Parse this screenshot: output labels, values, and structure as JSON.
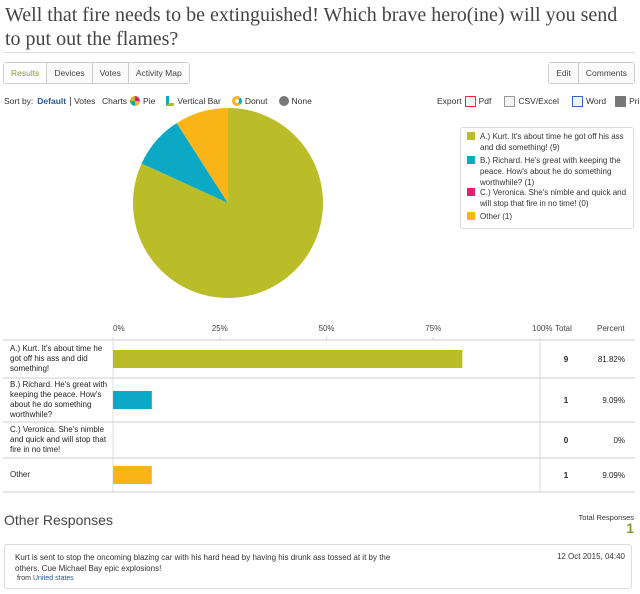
{
  "title": "Well that fire needs to be extinguished! Which brave hero(ine) will you send to put out the flames?",
  "tabs": [
    "Results",
    "Devices",
    "Votes",
    "Activity Map"
  ],
  "actions": [
    "Edit",
    "Comments"
  ],
  "sort": {
    "label": "Sort by:",
    "options": [
      "Default",
      "Votes"
    ]
  },
  "charts": {
    "label": "Charts",
    "options": [
      "Pie",
      "Vertical Bar",
      "Donut",
      "None"
    ]
  },
  "export": {
    "label": "Export",
    "options": [
      "Pdf",
      "CSV/Excel",
      "Word",
      "Print"
    ]
  },
  "axis": {
    "xlim": [
      0,
      100
    ],
    "ticks": [
      {
        "value": 0,
        "label": "0%"
      },
      {
        "value": 25,
        "label": "25%"
      },
      {
        "value": 50,
        "label": "50%"
      },
      {
        "value": 75,
        "label": "75%"
      },
      {
        "value": 100,
        "label": "100%"
      }
    ]
  },
  "headers": [
    "Total",
    "Percent"
  ],
  "options": [
    {
      "label": "A.) Kurt. It's about time he got off his ass and did something!",
      "legend": "A.) Kurt. It's about time he got off his ass and did something! (9)",
      "total": 9,
      "percent": 81.82,
      "percent_label": "81.82%",
      "color": "#bbbd28"
    },
    {
      "label": "B.) Richard. He's great with keeping the peace. How's about he do something worthwhile?",
      "legend": "B.) Richard. He's great with keeping the peace. How's about he do something worthwhile? (1)",
      "total": 1,
      "percent": 9.09,
      "percent_label": "9.09%",
      "color": "#0ba9c5"
    },
    {
      "label": "C.) Veronica. She's nimble and quick and will stop that fire in no time!",
      "legend": "C.) Veronica. She's nimble and quick and will stop that fire in no time! (0)",
      "total": 0,
      "percent": 0,
      "percent_label": "0%",
      "color": "#e2206e"
    },
    {
      "label": "Other",
      "legend": "Other (1)",
      "total": 1,
      "percent": 9.09,
      "percent_label": "9.09%",
      "color": "#fbb418"
    }
  ],
  "other_responses": {
    "heading": "Other Responses",
    "total_label": "Total Responses",
    "total": 1,
    "items": [
      {
        "text": "Kurt is sent to stop the oncoming blazing car with his hard head by having his drunk ass tossed at it by the others. Cue Michael Bay epic explosions!",
        "date": "12 Oct 2015, 04:40",
        "from_label": "from",
        "location": "United states"
      }
    ]
  }
}
